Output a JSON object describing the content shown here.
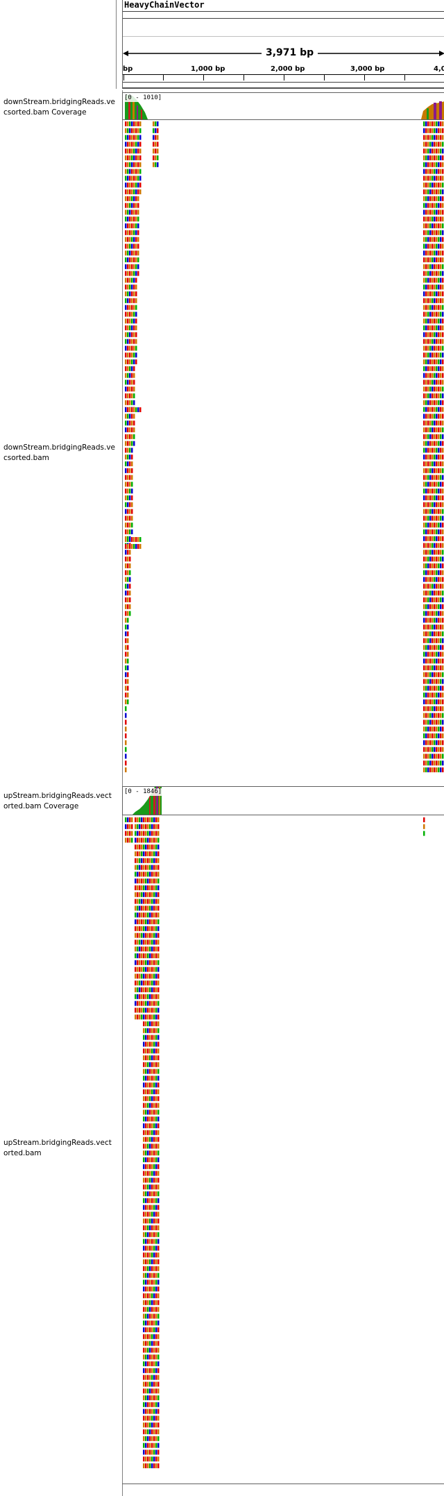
{
  "sequence": {
    "name": "HeavyChainVector",
    "length_label": "3,971 bp",
    "ruler_ticks": [
      "bp",
      "1,000 bp",
      "2,000 bp",
      "3,000 bp",
      "4,0"
    ]
  },
  "tracks": {
    "downstream_coverage": {
      "label": "downStream.bridgingReads.vecsorted.bam Coverage",
      "range": "[0 - 1010]"
    },
    "downstream_alignment": {
      "label": "downStream.bridgingReads.vecsorted.bam"
    },
    "upstream_coverage": {
      "label": "upStream.bridgingReads.vectorted.bam Coverage",
      "range": "[0 - 1846]"
    },
    "upstream_alignment": {
      "label": "upStream.bridgingReads.vectorted.bam"
    }
  },
  "colors": {
    "A": "#00b000",
    "C": "#0000d0",
    "G": "#d07800",
    "T": "#e00000",
    "ref": "#b8b8b8",
    "coverage_green": "#1a9a1a",
    "coverage_red": "#c82020",
    "coverage_orange": "#c87800",
    "coverage_purple": "#8a1a8a"
  }
}
